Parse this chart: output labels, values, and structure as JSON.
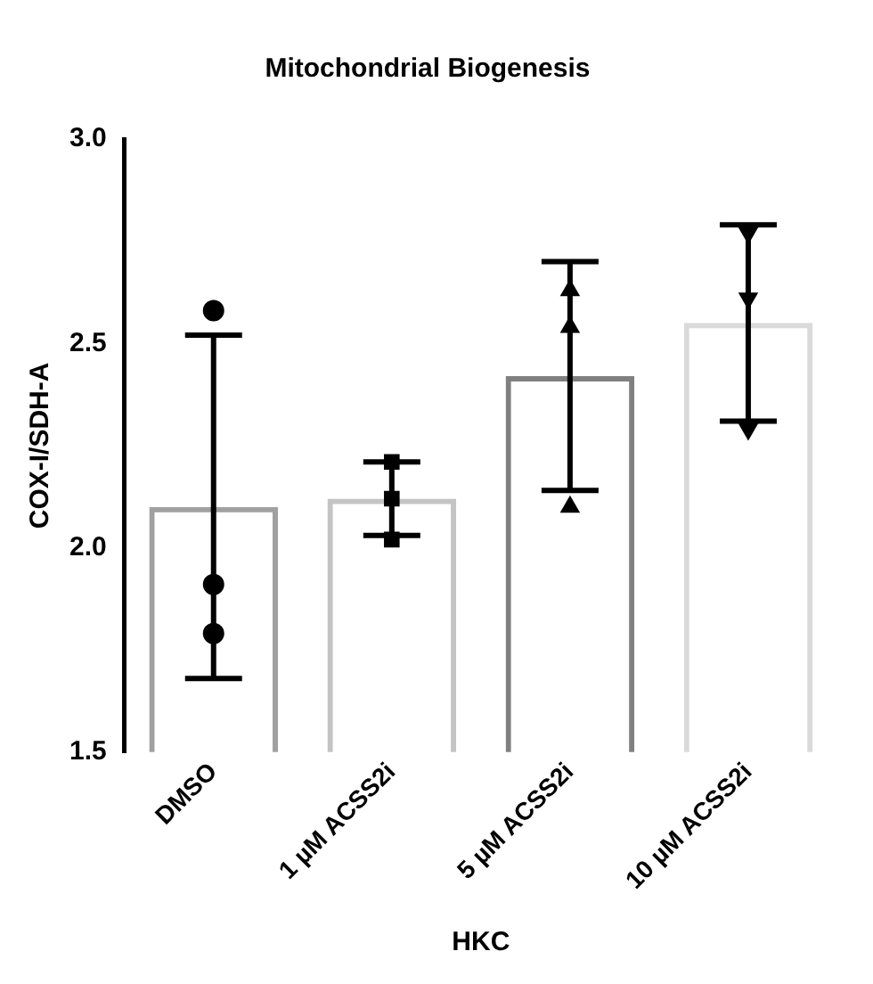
{
  "chart_data": {
    "type": "bar",
    "title": "Mitochondrial Biogenesis",
    "xlabel": "HKC",
    "ylabel": "COX-I/SDH-A",
    "categories": [
      "DMSO",
      "1 µM ACSS2i",
      "5 µM ACSS2i",
      "10 µM ACSS2i"
    ],
    "values": [
      2.1,
      2.12,
      2.42,
      2.55
    ],
    "colors": [
      "#a0a0a0",
      "#c4c4c4",
      "#808080",
      "#dadada"
    ],
    "errors": [
      0.42,
      0.09,
      0.28,
      0.24
    ],
    "series": [
      {
        "type": "scatter",
        "color": "#000000",
        "marker": "circle",
        "x": [
          "DMSO",
          "DMSO",
          "DMSO"
        ],
        "values": [
          2.58,
          1.91,
          1.79
        ]
      },
      {
        "type": "scatter",
        "color": "#000000",
        "marker": "square",
        "x": [
          "1 µM ACSS2i",
          "1 µM ACSS2i",
          "1 µM ACSS2i"
        ],
        "values": [
          2.21,
          2.12,
          2.02
        ]
      },
      {
        "type": "scatter",
        "color": "#000000",
        "marker": "triangle",
        "x": [
          "5 µM ACSS2i",
          "5 µM ACSS2i",
          "5 µM ACSS2i"
        ],
        "values": [
          2.63,
          2.54,
          2.1
        ]
      },
      {
        "type": "scatter",
        "color": "#000000",
        "marker": "triangle-down",
        "x": [
          "10 µM ACSS2i",
          "10 µM ACSS2i",
          "10 µM ACSS2i"
        ],
        "values": [
          2.77,
          2.61,
          2.29
        ]
      }
    ],
    "ylim": [
      1.5,
      3.0
    ],
    "yticks": [
      1.5,
      {
        "value": 2.0,
        "label": "2.0"
      },
      2.5,
      {
        "value": 3.0,
        "label": "3.0"
      }
    ],
    "grid": false,
    "legend": false
  }
}
